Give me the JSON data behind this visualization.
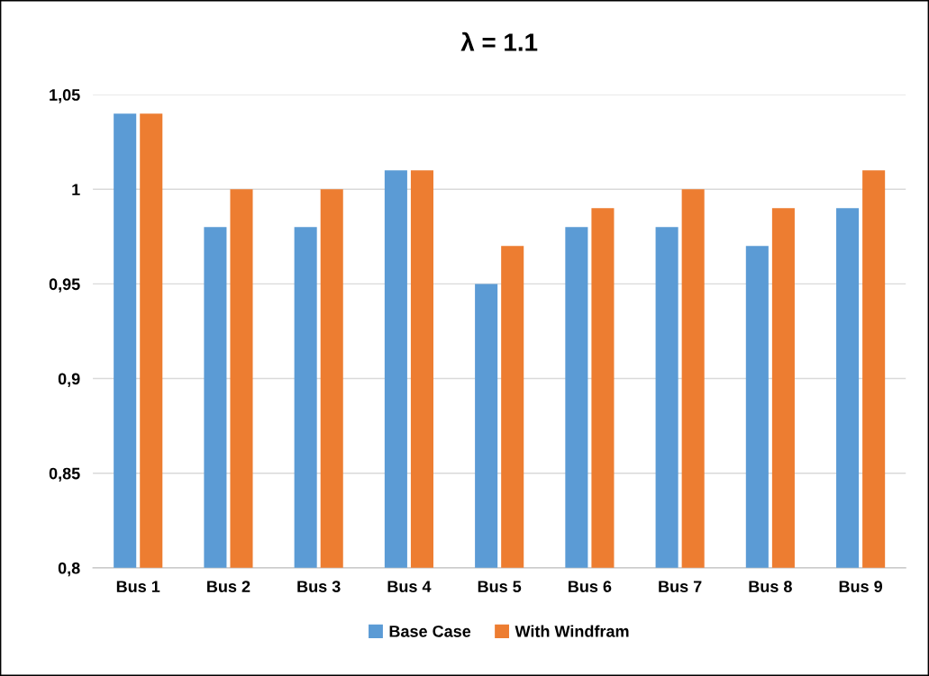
{
  "chart_data": {
    "type": "bar",
    "title": "λ = 1.1",
    "categories": [
      "Bus 1",
      "Bus 2",
      "Bus 3",
      "Bus 4",
      "Bus 5",
      "Bus 6",
      "Bus 7",
      "Bus 8",
      "Bus 9"
    ],
    "series": [
      {
        "name": "Base Case",
        "color": "#5b9bd5",
        "values": [
          1.04,
          0.98,
          0.98,
          1.01,
          0.95,
          0.98,
          0.98,
          0.97,
          0.99
        ]
      },
      {
        "name": "With Windfram",
        "color": "#ed7d31",
        "values": [
          1.04,
          1.0,
          1.0,
          1.01,
          0.97,
          0.99,
          1.0,
          0.99,
          1.01
        ]
      }
    ],
    "ylim": [
      0.8,
      1.05
    ],
    "yticks": [
      {
        "value": 0.8,
        "label": "0,8"
      },
      {
        "value": 0.85,
        "label": "0,85"
      },
      {
        "value": 0.9,
        "label": "0,9"
      },
      {
        "value": 0.95,
        "label": "0,95"
      },
      {
        "value": 1,
        "label": "1"
      },
      {
        "value": 1.05,
        "label": "1,05"
      }
    ],
    "grid": "y",
    "legend": "bottom"
  }
}
